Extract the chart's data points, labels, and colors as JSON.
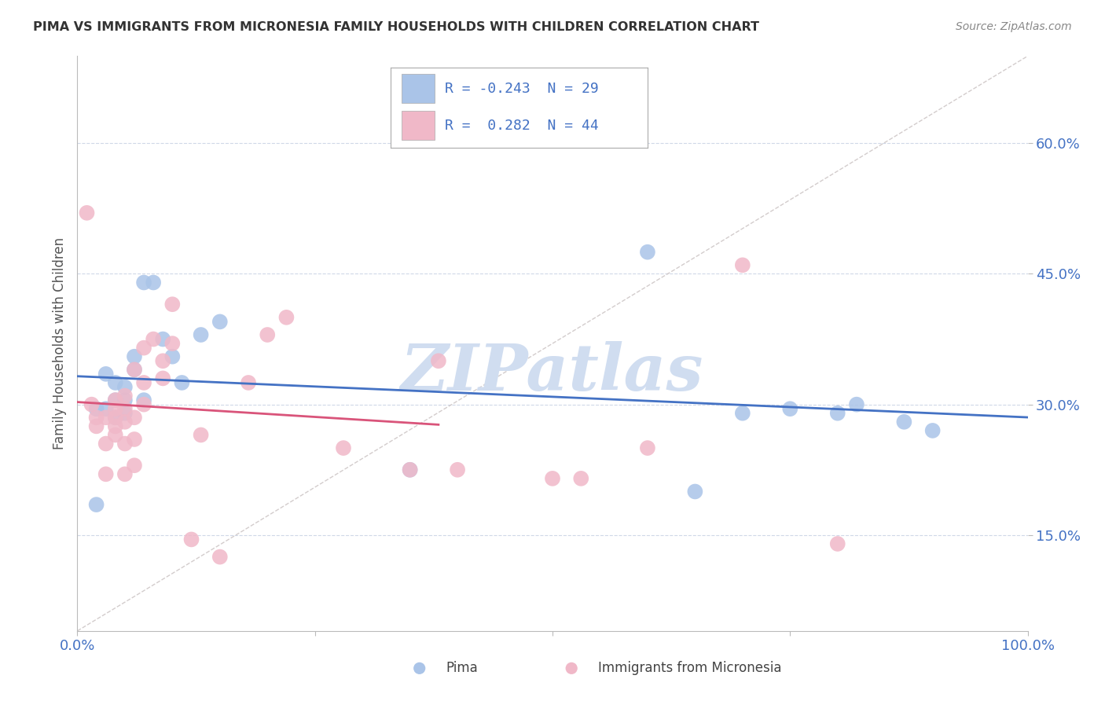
{
  "title": "PIMA VS IMMIGRANTS FROM MICRONESIA FAMILY HOUSEHOLDS WITH CHILDREN CORRELATION CHART",
  "source": "Source: ZipAtlas.com",
  "ylabel": "Family Households with Children",
  "ytick_vals": [
    0.15,
    0.3,
    0.45,
    0.6
  ],
  "ytick_labels": [
    "15.0%",
    "30.0%",
    "45.0%",
    "60.0%"
  ],
  "xtick_vals": [
    0.0,
    0.25,
    0.5,
    0.75,
    1.0
  ],
  "xtick_labels": [
    "0.0%",
    "",
    "",
    "",
    "100.0%"
  ],
  "legend_blue_r": "-0.243",
  "legend_blue_n": "29",
  "legend_pink_r": "0.282",
  "legend_pink_n": "44",
  "legend_label_blue": "Pima",
  "legend_label_pink": "Immigrants from Micronesia",
  "blue_color": "#aac4e8",
  "pink_color": "#f0b8c8",
  "blue_line_color": "#4472c4",
  "pink_line_color": "#d9547a",
  "diag_line_color": "#c8c0c0",
  "watermark_color": "#d0ddf0",
  "text_color": "#4472c4",
  "xlim": [
    0.0,
    1.0
  ],
  "ylim": [
    0.04,
    0.7
  ],
  "blue_points_x": [
    0.02,
    0.02,
    0.03,
    0.03,
    0.04,
    0.04,
    0.04,
    0.05,
    0.05,
    0.05,
    0.06,
    0.06,
    0.07,
    0.07,
    0.08,
    0.09,
    0.1,
    0.11,
    0.13,
    0.15,
    0.35,
    0.6,
    0.65,
    0.7,
    0.75,
    0.8,
    0.82,
    0.87,
    0.9
  ],
  "blue_points_y": [
    0.185,
    0.295,
    0.295,
    0.335,
    0.285,
    0.305,
    0.325,
    0.29,
    0.305,
    0.32,
    0.34,
    0.355,
    0.305,
    0.44,
    0.44,
    0.375,
    0.355,
    0.325,
    0.38,
    0.395,
    0.225,
    0.475,
    0.2,
    0.29,
    0.295,
    0.29,
    0.3,
    0.28,
    0.27
  ],
  "pink_points_x": [
    0.01,
    0.015,
    0.02,
    0.02,
    0.03,
    0.03,
    0.03,
    0.04,
    0.04,
    0.04,
    0.04,
    0.04,
    0.05,
    0.05,
    0.05,
    0.05,
    0.05,
    0.06,
    0.06,
    0.06,
    0.06,
    0.07,
    0.07,
    0.07,
    0.08,
    0.09,
    0.09,
    0.1,
    0.1,
    0.12,
    0.13,
    0.15,
    0.18,
    0.2,
    0.22,
    0.28,
    0.35,
    0.38,
    0.4,
    0.5,
    0.53,
    0.6,
    0.7,
    0.8
  ],
  "pink_points_y": [
    0.52,
    0.3,
    0.275,
    0.285,
    0.22,
    0.255,
    0.285,
    0.265,
    0.275,
    0.285,
    0.295,
    0.305,
    0.22,
    0.255,
    0.28,
    0.295,
    0.31,
    0.23,
    0.26,
    0.285,
    0.34,
    0.3,
    0.325,
    0.365,
    0.375,
    0.33,
    0.35,
    0.37,
    0.415,
    0.145,
    0.265,
    0.125,
    0.325,
    0.38,
    0.4,
    0.25,
    0.225,
    0.35,
    0.225,
    0.215,
    0.215,
    0.25,
    0.46,
    0.14
  ]
}
